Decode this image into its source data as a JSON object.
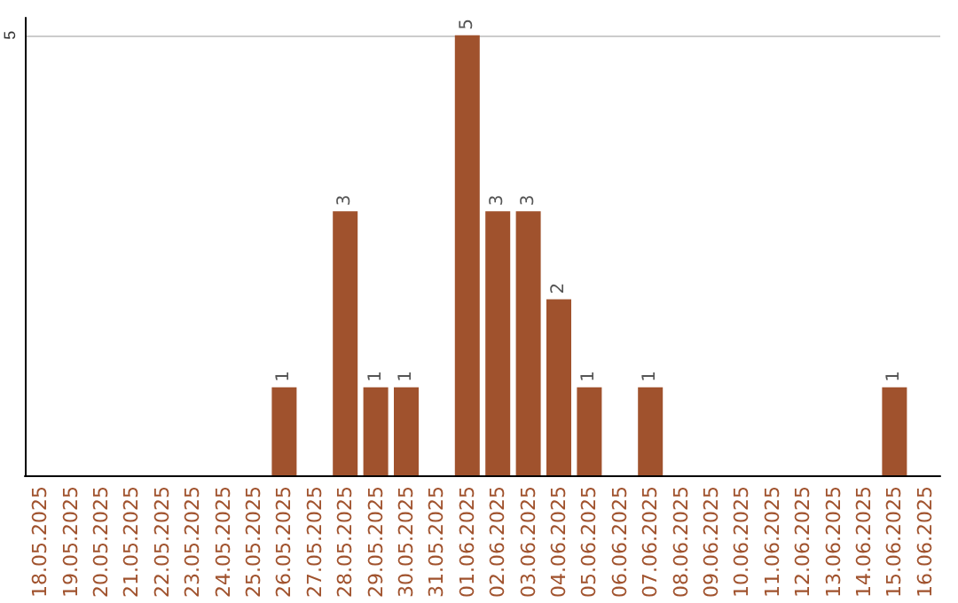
{
  "chart_data": {
    "type": "bar",
    "categories": [
      "18.05.2025",
      "19.05.2025",
      "20.05.2025",
      "21.05.2025",
      "22.05.2025",
      "23.05.2025",
      "24.05.2025",
      "25.05.2025",
      "26.05.2025",
      "27.05.2025",
      "28.05.2025",
      "29.05.2025",
      "30.05.2025",
      "31.05.2025",
      "01.06.2025",
      "02.06.2025",
      "03.06.2025",
      "04.06.2025",
      "05.06.2025",
      "06.06.2025",
      "07.06.2025",
      "08.06.2025",
      "09.06.2025",
      "10.06.2025",
      "11.06.2025",
      "12.06.2025",
      "13.06.2025",
      "14.06.2025",
      "15.06.2025",
      "16.06.2025"
    ],
    "values": [
      0,
      0,
      0,
      0,
      0,
      0,
      0,
      0,
      1,
      0,
      3,
      1,
      1,
      0,
      5,
      3,
      3,
      2,
      1,
      0,
      1,
      0,
      0,
      0,
      0,
      0,
      0,
      0,
      1,
      0
    ],
    "value_labels": [
      null,
      null,
      null,
      null,
      null,
      null,
      null,
      null,
      "1",
      null,
      "3",
      "1",
      "1",
      null,
      "5",
      "3",
      "3",
      "2",
      "1",
      null,
      "1",
      null,
      null,
      null,
      null,
      null,
      null,
      null,
      "1",
      null
    ],
    "color": "#a0522d",
    "ylim": [
      0,
      5.2
    ],
    "yticks": [
      5
    ],
    "grid": "y"
  }
}
